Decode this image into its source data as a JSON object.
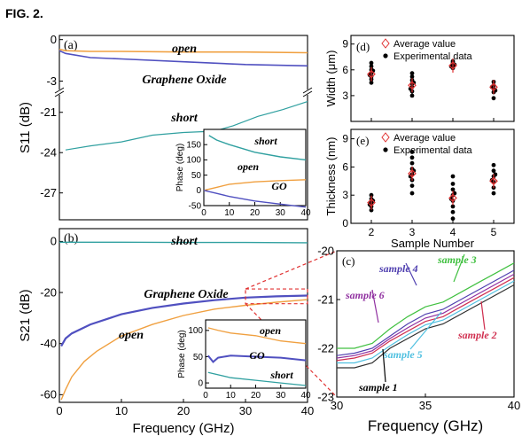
{
  "figure": {
    "label": "FIG. 2."
  },
  "chart_data": [
    {
      "id": "a",
      "panel_label": "(a)",
      "type": "line",
      "xlabel": "",
      "ylabel": "S11 (dB)",
      "xlim": [
        0,
        40
      ],
      "axis_break": {
        "lower_range": [
          -29,
          -19.5
        ],
        "upper_range": [
          -3.8,
          0.3
        ]
      },
      "yticks": [
        0,
        -3,
        -21,
        -24,
        -27
      ],
      "colors": {
        "open": "#f0a040",
        "graphene_oxide": "#5050c0",
        "short": "#30a0a0"
      },
      "annotations": [
        "open",
        "Graphene Oxide",
        "short"
      ],
      "series": [
        {
          "key": "open",
          "x": [
            0,
            1,
            5,
            10,
            20,
            30,
            40
          ],
          "y": [
            -0.7,
            -0.8,
            -0.85,
            -0.85,
            -0.9,
            -0.9,
            -0.95
          ]
        },
        {
          "key": "graphene_oxide",
          "x": [
            0,
            1,
            5,
            10,
            20,
            30,
            40
          ],
          "y": [
            -0.8,
            -1.0,
            -1.3,
            -1.4,
            -1.6,
            -1.8,
            -1.9
          ]
        },
        {
          "key": "short",
          "x": [
            1,
            5,
            10,
            15,
            20,
            25,
            28,
            32,
            36,
            40
          ],
          "y": [
            -23.8,
            -23.5,
            -23.2,
            -22.7,
            -22.5,
            -22.4,
            -22.0,
            -21.3,
            -20.8,
            -20.2
          ]
        }
      ],
      "inset": {
        "type": "line",
        "ylabel": "Phase (deg)",
        "xlim": [
          0,
          40
        ],
        "ylim": [
          -50,
          200
        ],
        "xticks": [
          0,
          10,
          20,
          30,
          40
        ],
        "yticks": [
          -50,
          0,
          50,
          100,
          150
        ],
        "annotations": [
          "short",
          "open",
          "GO"
        ],
        "series": [
          {
            "key": "short",
            "x": [
              2,
              5,
              10,
              20,
              30,
              40
            ],
            "y": [
              180,
              165,
              150,
              125,
              110,
              100
            ]
          },
          {
            "key": "open",
            "x": [
              0,
              5,
              10,
              20,
              30,
              40
            ],
            "y": [
              0,
              10,
              20,
              28,
              32,
              35
            ]
          },
          {
            "key": "graphene_oxide",
            "x": [
              0,
              5,
              10,
              20,
              30,
              40
            ],
            "y": [
              0,
              -10,
              -20,
              -35,
              -45,
              -55
            ]
          }
        ]
      }
    },
    {
      "id": "b",
      "panel_label": "(b)",
      "type": "line",
      "xlabel": "Frequency (GHz)",
      "ylabel": "S21 (dB)",
      "xlim": [
        0,
        40
      ],
      "ylim": [
        -63,
        5
      ],
      "xticks": [
        0,
        10,
        20,
        30,
        40
      ],
      "yticks": [
        0,
        -20,
        -40,
        -60
      ],
      "annotations": [
        "short",
        "Graphene Oxide",
        "open"
      ],
      "series": [
        {
          "key": "short",
          "x": [
            0,
            10,
            20,
            30,
            40
          ],
          "y": [
            -0.3,
            -0.3,
            -0.4,
            -0.4,
            -0.5
          ]
        },
        {
          "key": "graphene_oxide",
          "x": [
            0.3,
            1,
            2,
            5,
            10,
            15,
            20,
            25,
            30,
            35,
            40
          ],
          "y": [
            -41,
            -38,
            -36,
            -32.5,
            -28.5,
            -26,
            -24.3,
            -23,
            -22,
            -21.5,
            -21.2
          ]
        },
        {
          "key": "open",
          "x": [
            0.3,
            1,
            2,
            4,
            6,
            10,
            15,
            20,
            25,
            30,
            35,
            40
          ],
          "y": [
            -62,
            -58,
            -53,
            -47,
            -43,
            -37,
            -32.5,
            -29,
            -26.5,
            -25,
            -23.8,
            -22.8
          ]
        }
      ],
      "inset": {
        "type": "line",
        "ylabel": "Phase (deg)",
        "xlim": [
          0,
          40
        ],
        "ylim": [
          -10,
          120
        ],
        "xticks": [
          0,
          10,
          20,
          30,
          40
        ],
        "yticks": [
          0,
          50,
          100
        ],
        "annotations": [
          "open",
          "GO",
          "short"
        ],
        "series": [
          {
            "key": "open",
            "x": [
              1,
              5,
              10,
              20,
              30,
              40
            ],
            "y": [
              105,
              100,
              95,
              90,
              80,
              75
            ]
          },
          {
            "key": "graphene_oxide",
            "x": [
              1,
              3,
              5,
              10,
              20,
              30,
              40
            ],
            "y": [
              52,
              40,
              48,
              52,
              50,
              48,
              43
            ]
          },
          {
            "key": "short",
            "x": [
              1,
              10,
              20,
              30,
              40
            ],
            "y": [
              20,
              10,
              5,
              0,
              -5
            ]
          }
        ]
      }
    },
    {
      "id": "c",
      "panel_label": "(c)",
      "type": "line",
      "xlabel": "Frequency (GHz)",
      "ylabel": "",
      "xlim": [
        30,
        40
      ],
      "ylim": [
        -23,
        -20
      ],
      "xticks": [
        30,
        35,
        40
      ],
      "yticks": [
        -20,
        -21,
        -22,
        -23
      ],
      "series": [
        {
          "name": "sample 1",
          "color": "#303030",
          "x": [
            30,
            31,
            32,
            33,
            34,
            35,
            36,
            37,
            38,
            39,
            40
          ],
          "y": [
            -22.4,
            -22.4,
            -22.3,
            -22.0,
            -21.8,
            -21.6,
            -21.5,
            -21.3,
            -21.1,
            -20.9,
            -20.7
          ]
        },
        {
          "name": "sample 2",
          "color": "#d03050",
          "x": [
            30,
            31,
            32,
            33,
            34,
            35,
            36,
            37,
            38,
            39,
            40
          ],
          "y": [
            -22.25,
            -22.2,
            -22.1,
            -21.85,
            -21.65,
            -21.45,
            -21.35,
            -21.15,
            -20.95,
            -20.75,
            -20.55
          ]
        },
        {
          "name": "sample 3",
          "color": "#40c040",
          "x": [
            30,
            31,
            32,
            33,
            34,
            35,
            36,
            37,
            38,
            39,
            40
          ],
          "y": [
            -22.0,
            -22.0,
            -21.9,
            -21.6,
            -21.35,
            -21.15,
            -21.05,
            -20.85,
            -20.65,
            -20.45,
            -20.25
          ]
        },
        {
          "name": "sample 4",
          "color": "#5040b0",
          "x": [
            30,
            31,
            32,
            33,
            34,
            35,
            36,
            37,
            38,
            39,
            40
          ],
          "y": [
            -22.15,
            -22.1,
            -22.0,
            -21.75,
            -21.5,
            -21.3,
            -21.2,
            -21.0,
            -20.8,
            -20.6,
            -20.4
          ]
        },
        {
          "name": "sample 5",
          "color": "#50c0e0",
          "x": [
            30,
            31,
            32,
            33,
            34,
            35,
            36,
            37,
            38,
            39,
            40
          ],
          "y": [
            -22.3,
            -22.3,
            -22.2,
            -21.95,
            -21.72,
            -21.52,
            -21.42,
            -21.22,
            -21.02,
            -20.82,
            -20.62
          ]
        },
        {
          "name": "sample 6",
          "color": "#9030a0",
          "x": [
            30,
            31,
            32,
            33,
            34,
            35,
            36,
            37,
            38,
            39,
            40
          ],
          "y": [
            -22.2,
            -22.15,
            -22.05,
            -21.8,
            -21.58,
            -21.38,
            -21.28,
            -21.08,
            -20.88,
            -20.68,
            -20.48
          ]
        }
      ]
    },
    {
      "id": "d",
      "panel_label": "(d)",
      "type": "scatter",
      "xlabel": "",
      "ylabel": "Width (μm)",
      "xlim": [
        1.5,
        5.5
      ],
      "ylim": [
        0,
        10
      ],
      "yticks": [
        3,
        6,
        9
      ],
      "legend": [
        "Average value",
        "Experimental data"
      ],
      "average": [
        {
          "x": 2,
          "y": 5.5
        },
        {
          "x": 3,
          "y": 4.2
        },
        {
          "x": 4,
          "y": 6.5
        },
        {
          "x": 5,
          "y": 4.0
        }
      ],
      "points": [
        [
          2,
          4.5
        ],
        [
          2,
          4.9
        ],
        [
          2,
          5.2
        ],
        [
          2,
          5.6
        ],
        [
          2,
          6.0
        ],
        [
          2,
          6.4
        ],
        [
          2,
          6.8
        ],
        [
          1.96,
          5.4
        ],
        [
          2.04,
          5.9
        ],
        [
          3,
          3.0
        ],
        [
          3,
          3.5
        ],
        [
          3,
          4.0
        ],
        [
          3,
          4.4
        ],
        [
          3,
          4.8
        ],
        [
          3,
          5.2
        ],
        [
          3,
          5.6
        ],
        [
          2.96,
          3.8
        ],
        [
          3.04,
          4.5
        ],
        [
          4,
          6.2
        ],
        [
          4,
          6.5
        ],
        [
          4,
          6.8
        ],
        [
          4,
          7.0
        ],
        [
          3.96,
          6.4
        ],
        [
          4.04,
          6.6
        ],
        [
          5,
          2.7
        ],
        [
          5,
          3.4
        ],
        [
          5,
          3.8
        ],
        [
          5,
          4.2
        ],
        [
          5,
          4.6
        ],
        [
          4.96,
          4.0
        ],
        [
          5.04,
          3.6
        ]
      ]
    },
    {
      "id": "e",
      "panel_label": "(e)",
      "type": "scatter",
      "xlabel": "Sample Number",
      "ylabel": "Thickness (nm)",
      "xlim": [
        1.5,
        5.5
      ],
      "ylim": [
        0,
        10
      ],
      "xticks": [
        2,
        3,
        4,
        5
      ],
      "yticks": [
        0,
        3,
        6,
        9
      ],
      "legend": [
        "Average value",
        "Experimental data"
      ],
      "average": [
        {
          "x": 2,
          "y": 2.2
        },
        {
          "x": 3,
          "y": 5.3
        },
        {
          "x": 4,
          "y": 2.7
        },
        {
          "x": 5,
          "y": 4.5
        }
      ],
      "points": [
        [
          2,
          1.4
        ],
        [
          2,
          1.8
        ],
        [
          2,
          2.2
        ],
        [
          2,
          2.6
        ],
        [
          2,
          3.0
        ],
        [
          1.96,
          2.0
        ],
        [
          2.04,
          2.4
        ],
        [
          3,
          3.2
        ],
        [
          3,
          4.0
        ],
        [
          3,
          4.6
        ],
        [
          3,
          5.2
        ],
        [
          3,
          5.8
        ],
        [
          3,
          6.4
        ],
        [
          3,
          7.0
        ],
        [
          3,
          7.6
        ],
        [
          2.96,
          5.0
        ],
        [
          3.04,
          5.6
        ],
        [
          4,
          0.5
        ],
        [
          4,
          1.2
        ],
        [
          4,
          1.8
        ],
        [
          4,
          2.4
        ],
        [
          4,
          3.0
        ],
        [
          4,
          3.6
        ],
        [
          4,
          4.2
        ],
        [
          4,
          5.0
        ],
        [
          3.96,
          2.6
        ],
        [
          4.04,
          3.2
        ],
        [
          5,
          3.2
        ],
        [
          5,
          3.8
        ],
        [
          5,
          4.4
        ],
        [
          5,
          5.0
        ],
        [
          5,
          5.6
        ],
        [
          5,
          6.2
        ],
        [
          4.96,
          4.6
        ],
        [
          5.04,
          5.2
        ]
      ]
    }
  ]
}
